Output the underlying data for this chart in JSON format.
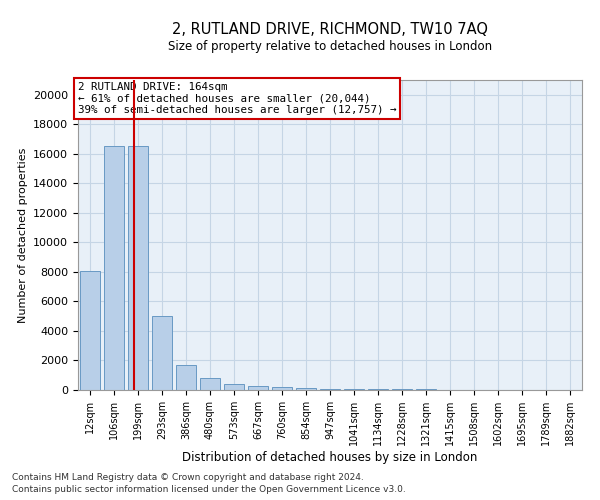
{
  "title": "2, RUTLAND DRIVE, RICHMOND, TW10 7AQ",
  "subtitle": "Size of property relative to detached houses in London",
  "xlabel": "Distribution of detached houses by size in London",
  "ylabel": "Number of detached properties",
  "categories": [
    "12sqm",
    "106sqm",
    "199sqm",
    "293sqm",
    "386sqm",
    "480sqm",
    "573sqm",
    "667sqm",
    "760sqm",
    "854sqm",
    "947sqm",
    "1041sqm",
    "1134sqm",
    "1228sqm",
    "1321sqm",
    "1415sqm",
    "1508sqm",
    "1602sqm",
    "1695sqm",
    "1789sqm",
    "1882sqm"
  ],
  "values": [
    8050,
    16500,
    16500,
    5000,
    1700,
    800,
    400,
    300,
    200,
    130,
    100,
    80,
    60,
    50,
    40,
    30,
    25,
    20,
    15,
    10,
    8
  ],
  "bar_color": "#b8cfe8",
  "bar_edge_color": "#6899c4",
  "grid_color": "#c5d5e5",
  "background_color": "#e8f0f8",
  "red_line_x": 1.85,
  "annotation_title": "2 RUTLAND DRIVE: 164sqm",
  "annotation_line1": "← 61% of detached houses are smaller (20,044)",
  "annotation_line2": "39% of semi-detached houses are larger (12,757) →",
  "annotation_box_color": "#ffffff",
  "annotation_border_color": "#cc0000",
  "red_line_color": "#cc0000",
  "footnote1": "Contains HM Land Registry data © Crown copyright and database right 2024.",
  "footnote2": "Contains public sector information licensed under the Open Government Licence v3.0.",
  "ylim": [
    0,
    21000
  ],
  "yticks": [
    0,
    2000,
    4000,
    6000,
    8000,
    10000,
    12000,
    14000,
    16000,
    18000,
    20000
  ]
}
